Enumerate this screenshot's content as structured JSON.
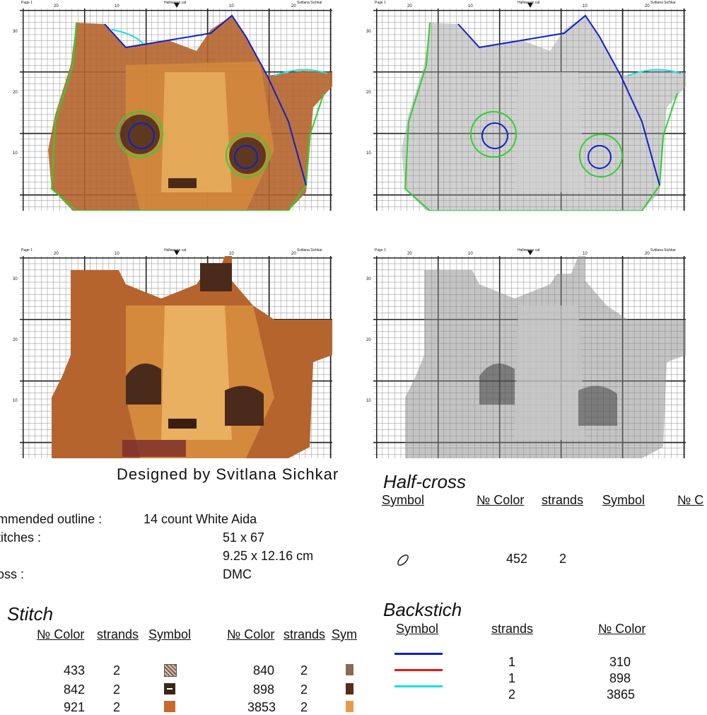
{
  "chart_page": {
    "page_label": "Page 1",
    "title": "Halloween cat",
    "author": "Svitlana Sichkar",
    "x_ticks": [
      "20",
      "10",
      "10",
      "20"
    ],
    "y_ticks": [
      "30",
      "20",
      "10"
    ]
  },
  "designer": "Designed by Svitlana Sichkar",
  "specs": {
    "rows": [
      {
        "label": "mmended outline :",
        "value": "14 count White Aida"
      },
      {
        "label": "titches :",
        "value": "51 x 67"
      },
      {
        "label": "",
        "value": "9.25 x 12.16 cm"
      },
      {
        "label": "oss :",
        "value": "DMC"
      }
    ]
  },
  "full_stitch": {
    "heading": "Stitch",
    "headers": [
      "№ Color",
      "strands",
      "Symbol",
      "№ Color",
      "strands",
      "Sym"
    ],
    "left_rows": [
      {
        "color": "433",
        "strands": "2",
        "symbol": "hatched-brown-square-icon",
        "sym_color": "#7a5a48"
      },
      {
        "color": "842",
        "strands": "2",
        "symbol": "dash-square-icon",
        "sym_color": "#3a2618"
      },
      {
        "color": "921",
        "strands": "2",
        "symbol": "v-square-icon",
        "sym_color": "#c8692e"
      }
    ],
    "right_rows": [
      {
        "color": "840",
        "strands": "2",
        "symbol": "corner-tan-icon",
        "sym_color": "#8a6a52"
      },
      {
        "color": "898",
        "strands": "2",
        "symbol": "six-square-icon",
        "sym_color": "#5a2a1a"
      },
      {
        "color": "3853",
        "strands": "2",
        "symbol": "bar-orange-icon",
        "sym_color": "#e89a4a"
      }
    ]
  },
  "half_cross": {
    "heading": "Half-cross",
    "headers": [
      "Symbol",
      "№ Color",
      "strands",
      "Symbol",
      "№ C"
    ],
    "rows": [
      {
        "symbol": "oval-outline-icon",
        "color": "452",
        "strands": "2"
      }
    ]
  },
  "backstitch": {
    "heading": "Backstich",
    "headers": [
      "Symbol",
      "strands",
      "№ Color"
    ],
    "rows": [
      {
        "line_color": "#1020c8",
        "strands": "1",
        "color": "310"
      },
      {
        "line_color": "#e01818",
        "strands": "1",
        "color": "898"
      },
      {
        "line_color": "#18e0e0",
        "strands": "2",
        "color": "3865"
      }
    ]
  }
}
